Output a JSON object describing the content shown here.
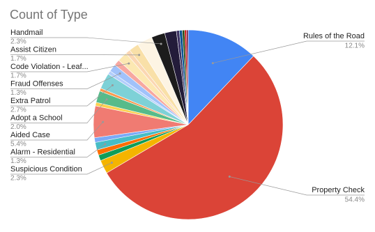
{
  "chart_data": {
    "type": "pie",
    "title": "Count of Type",
    "categories": [
      "Rules of the Road",
      "Property Check",
      "Suspicious Condition",
      null,
      null,
      "Alarm - Residential",
      null,
      "Aided Case",
      null,
      "Adopt a School",
      null,
      "Extra Patrol",
      null,
      "Fraud Offenses",
      null,
      "Code Violation - Leaf...",
      null,
      "Assist Citizen",
      null,
      "Handmail",
      null,
      null,
      null,
      null,
      null,
      null
    ],
    "values": [
      12.1,
      54.4,
      2.3,
      1.0,
      0.9,
      1.3,
      0.8,
      5.4,
      0.6,
      2.0,
      0.5,
      2.7,
      0.6,
      1.3,
      1.0,
      1.7,
      0.8,
      1.7,
      2.6,
      2.3,
      2.0,
      0.5,
      0.5,
      0.4,
      0.3,
      0.3
    ],
    "value_labels": [
      "12.1%",
      "54.4%",
      "2.3%",
      null,
      null,
      "1.3%",
      null,
      "5.4%",
      null,
      "2.0%",
      null,
      "2.7%",
      null,
      "1.3%",
      null,
      "1.7%",
      null,
      "1.7%",
      null,
      "2.3%",
      null,
      null,
      null,
      null,
      null,
      null
    ],
    "colors": [
      "#4285f4",
      "#db4437",
      "#f4b400",
      "#0f9d58",
      "#ff6d00",
      "#46bdc6",
      "#7baaf7",
      "#f07b72",
      "#fcd04f",
      "#57bb8a",
      "#ff994d",
      "#7ed1d7",
      "#b3cefb",
      "#a1c2fa",
      "#f7a7a0",
      "#fce8b2",
      "#fbd7b3",
      "#f9e0a8",
      "#fdf4e3",
      "#1c1c1c",
      "#231c3a",
      "#3b3060",
      "#0b5394",
      "#274e13",
      "#cc0000",
      "#741b47"
    ]
  }
}
